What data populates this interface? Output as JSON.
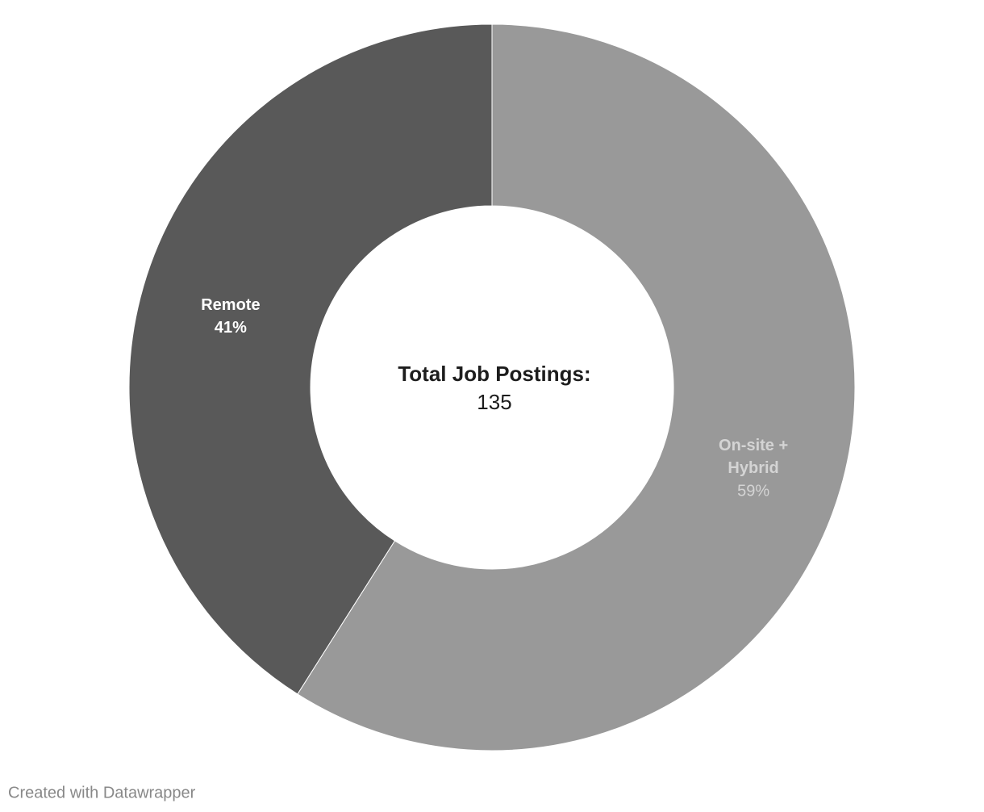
{
  "chart_data": {
    "type": "pie",
    "center_title": "Total Job Postings:",
    "center_value": "135",
    "categories": [
      "On-site + Hybrid",
      "Remote"
    ],
    "values": [
      59,
      41
    ],
    "value_labels": [
      "59%",
      "41%"
    ],
    "colors": [
      "#999999",
      "#595959"
    ],
    "label_colors": [
      "#d4d4d4",
      "#ffffff"
    ],
    "donut": true
  },
  "footer": "Created with Datawrapper"
}
